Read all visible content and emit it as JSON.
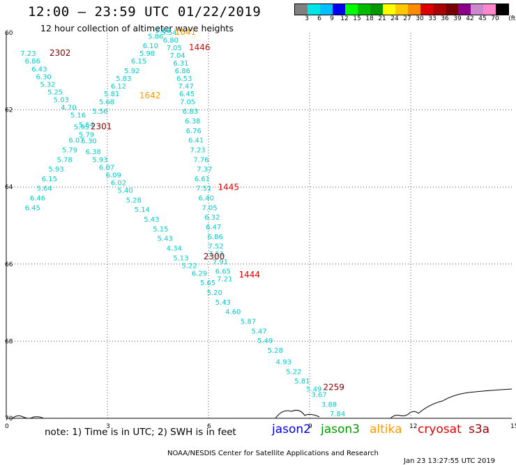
{
  "header": {
    "title": "12:00 – 23:59 UTC 01/22/2019",
    "subtitle": "12 hour collection of altimeter wave heights"
  },
  "colorbar": {
    "colors": [
      "#808080",
      "#00e5e5",
      "#00bfff",
      "#0000ee",
      "#00ff00",
      "#00bb00",
      "#009900",
      "#ffff00",
      "#ffc800",
      "#ff8c00",
      "#dd0000",
      "#aa0000",
      "#770000",
      "#8b008b",
      "#cc88cc",
      "#ff88cc",
      "#000000"
    ],
    "labels": [
      "3",
      "6",
      "9",
      "12",
      "15",
      "18",
      "21",
      "24",
      "27",
      "30",
      "33",
      "36",
      "39",
      "42",
      "45",
      "70",
      "(ft)"
    ]
  },
  "chart_data": {
    "type": "scatter",
    "x_ticks": [
      "0",
      "3",
      "6",
      "9",
      "12",
      "15"
    ],
    "y_ticks": [
      "60",
      "62",
      "64",
      "66",
      "68",
      "70"
    ],
    "xlim": [
      0,
      15
    ],
    "ylim": [
      60,
      70
    ],
    "grid": true,
    "time_labels": [
      {
        "text": "2302",
        "color": "#800000",
        "x": 1.28,
        "y": 60.6
      },
      {
        "text": "1641",
        "color": "#ff9900",
        "x": 5.0,
        "y": 60.05
      },
      {
        "text": "1446",
        "color": "#e60000",
        "x": 5.42,
        "y": 60.45
      },
      {
        "text": "1642",
        "color": "#ff9900",
        "x": 3.95,
        "y": 61.7
      },
      {
        "text": "2301",
        "color": "#800000",
        "x": 2.5,
        "y": 62.5
      },
      {
        "text": "1445",
        "color": "#e60000",
        "x": 6.28,
        "y": 64.08
      },
      {
        "text": "2300",
        "color": "#800000",
        "x": 5.85,
        "y": 65.88
      },
      {
        "text": "1444",
        "color": "#e60000",
        "x": 6.9,
        "y": 66.35
      },
      {
        "text": "2259",
        "color": "#800000",
        "x": 9.4,
        "y": 69.27
      }
    ],
    "series": [
      {
        "name": "2302",
        "color": "#00cccc",
        "points": [
          {
            "x": 0.42,
            "y": 60.6,
            "v": "7.23"
          },
          {
            "x": 0.55,
            "y": 60.8,
            "v": "6.86"
          },
          {
            "x": 0.75,
            "y": 61.0,
            "v": "6.43"
          },
          {
            "x": 0.88,
            "y": 61.2,
            "v": "6.30"
          },
          {
            "x": 1.0,
            "y": 61.4,
            "v": "5.32"
          },
          {
            "x": 1.22,
            "y": 61.6,
            "v": "5.25"
          },
          {
            "x": 1.4,
            "y": 61.8,
            "v": "5.03"
          },
          {
            "x": 1.62,
            "y": 62.0,
            "v": "4.70"
          },
          {
            "x": 1.9,
            "y": 62.2,
            "v": "5.16"
          },
          {
            "x": 2.0,
            "y": 62.5,
            "v": "5.95"
          },
          {
            "x": 2.15,
            "y": 62.7,
            "v": "5.79"
          },
          {
            "x": 2.22,
            "y": 62.87,
            "v": "6.30"
          },
          {
            "x": 2.35,
            "y": 63.15,
            "v": "6.38"
          },
          {
            "x": 2.55,
            "y": 63.35,
            "v": "5.93"
          },
          {
            "x": 2.75,
            "y": 63.55,
            "v": "6.07"
          },
          {
            "x": 2.95,
            "y": 63.75,
            "v": "6.09"
          },
          {
            "x": 3.1,
            "y": 63.95,
            "v": "6.02"
          },
          {
            "x": 3.3,
            "y": 64.15,
            "v": "5.40"
          },
          {
            "x": 3.55,
            "y": 64.4,
            "v": "5.28"
          },
          {
            "x": 3.8,
            "y": 64.65,
            "v": "5.14"
          },
          {
            "x": 4.08,
            "y": 64.9,
            "v": "5.43"
          },
          {
            "x": 4.35,
            "y": 65.15,
            "v": "5.15"
          },
          {
            "x": 4.48,
            "y": 65.4,
            "v": "5.43"
          },
          {
            "x": 4.75,
            "y": 65.65,
            "v": "4.34"
          },
          {
            "x": 4.95,
            "y": 65.9,
            "v": "5.13"
          },
          {
            "x": 5.2,
            "y": 66.1,
            "v": "5.22"
          },
          {
            "x": 5.5,
            "y": 66.3,
            "v": "6.29"
          },
          {
            "x": 5.75,
            "y": 66.55,
            "v": "5.65"
          },
          {
            "x": 5.95,
            "y": 66.8,
            "v": "5.20"
          },
          {
            "x": 6.2,
            "y": 67.05,
            "v": "5.43"
          },
          {
            "x": 6.5,
            "y": 67.3,
            "v": "4.60"
          },
          {
            "x": 6.95,
            "y": 67.55,
            "v": "5.87"
          },
          {
            "x": 7.27,
            "y": 67.8,
            "v": "5.47"
          },
          {
            "x": 7.45,
            "y": 68.05,
            "v": "5.49"
          },
          {
            "x": 7.75,
            "y": 68.3,
            "v": "5.28"
          },
          {
            "x": 8.0,
            "y": 68.6,
            "v": "4.93"
          },
          {
            "x": 8.3,
            "y": 68.85,
            "v": "5.22"
          },
          {
            "x": 8.55,
            "y": 69.1,
            "v": "5.81"
          },
          {
            "x": 8.9,
            "y": 69.3,
            "v": "5.49"
          },
          {
            "x": 9.05,
            "y": 69.45,
            "v": "3.67"
          },
          {
            "x": 9.35,
            "y": 69.7,
            "v": "3.88"
          },
          {
            "x": 9.6,
            "y": 69.95,
            "v": "7.84"
          }
        ]
      },
      {
        "name": "2301",
        "color": "#00cccc",
        "points": [
          {
            "x": 2.15,
            "y": 62.45,
            "v": "5.54"
          },
          {
            "x": 1.85,
            "y": 62.85,
            "v": "6.07"
          },
          {
            "x": 1.65,
            "y": 63.1,
            "v": "5.79"
          },
          {
            "x": 1.5,
            "y": 63.35,
            "v": "5.78"
          },
          {
            "x": 1.25,
            "y": 63.6,
            "v": "5.93"
          },
          {
            "x": 1.05,
            "y": 63.85,
            "v": "6.15"
          },
          {
            "x": 0.9,
            "y": 64.1,
            "v": "5.64"
          },
          {
            "x": 0.7,
            "y": 64.35,
            "v": "6.46"
          },
          {
            "x": 0.55,
            "y": 64.6,
            "v": "6.45"
          }
        ]
      },
      {
        "name": "1641 / 1642",
        "color": "#00cccc",
        "points": [
          {
            "x": 4.42,
            "y": 60.0,
            "v": "5.80"
          },
          {
            "x": 4.6,
            "y": 60.05,
            "v": "5.54"
          },
          {
            "x": 4.2,
            "y": 60.15,
            "v": "5.86"
          },
          {
            "x": 4.05,
            "y": 60.4,
            "v": "6.10"
          },
          {
            "x": 3.95,
            "y": 60.6,
            "v": "5.98"
          },
          {
            "x": 3.7,
            "y": 60.8,
            "v": "6.15"
          },
          {
            "x": 3.5,
            "y": 61.05,
            "v": "5.92"
          },
          {
            "x": 3.25,
            "y": 61.25,
            "v": "5.83"
          },
          {
            "x": 3.1,
            "y": 61.45,
            "v": "6.12"
          },
          {
            "x": 2.9,
            "y": 61.65,
            "v": "5.81"
          },
          {
            "x": 2.75,
            "y": 61.85,
            "v": "5.68"
          },
          {
            "x": 2.55,
            "y": 62.1,
            "v": "5.56"
          }
        ]
      },
      {
        "name": "1446 / 1444",
        "color": "#00cccc",
        "points": [
          {
            "x": 4.65,
            "y": 60.25,
            "v": "6.80"
          },
          {
            "x": 4.75,
            "y": 60.45,
            "v": "7.05"
          },
          {
            "x": 4.85,
            "y": 60.65,
            "v": "7.04"
          },
          {
            "x": 4.95,
            "y": 60.85,
            "v": "6.31"
          },
          {
            "x": 5.0,
            "y": 61.05,
            "v": "6.86"
          },
          {
            "x": 5.05,
            "y": 61.25,
            "v": "6.53"
          },
          {
            "x": 5.1,
            "y": 61.45,
            "v": "7.47"
          },
          {
            "x": 5.13,
            "y": 61.65,
            "v": "6.45"
          },
          {
            "x": 5.15,
            "y": 61.85,
            "v": "7.05"
          },
          {
            "x": 5.23,
            "y": 62.1,
            "v": "6.83"
          },
          {
            "x": 5.3,
            "y": 62.35,
            "v": "6.38"
          },
          {
            "x": 5.33,
            "y": 62.6,
            "v": "6.76"
          },
          {
            "x": 5.4,
            "y": 62.85,
            "v": "6.41"
          },
          {
            "x": 5.45,
            "y": 63.1,
            "v": "7.23"
          },
          {
            "x": 5.55,
            "y": 63.35,
            "v": "7.76"
          },
          {
            "x": 5.65,
            "y": 63.6,
            "v": "7.37"
          },
          {
            "x": 5.58,
            "y": 63.85,
            "v": "6.61"
          },
          {
            "x": 5.63,
            "y": 64.1,
            "v": "7.51"
          },
          {
            "x": 5.7,
            "y": 64.35,
            "v": "6.40"
          },
          {
            "x": 5.8,
            "y": 64.6,
            "v": "7.05"
          },
          {
            "x": 5.88,
            "y": 64.85,
            "v": "6.32"
          },
          {
            "x": 5.92,
            "y": 65.1,
            "v": "6.47"
          },
          {
            "x": 5.97,
            "y": 65.35,
            "v": "6.86"
          },
          {
            "x": 5.99,
            "y": 65.6,
            "v": "7.52"
          },
          {
            "x": 6.0,
            "y": 65.8,
            "v": "7.51"
          },
          {
            "x": 6.12,
            "y": 66.0,
            "v": "7.91"
          },
          {
            "x": 6.2,
            "y": 66.25,
            "v": "6.65"
          },
          {
            "x": 6.25,
            "y": 66.45,
            "v": "7.21"
          }
        ]
      }
    ]
  },
  "footer": {
    "note": "note:  1) Time is in UTC;  2) SWH is in feet",
    "satellites": [
      {
        "label": "jason2",
        "color": "#0000dd"
      },
      {
        "label": "jason3",
        "color": "#009900"
      },
      {
        "label": "altika",
        "color": "#ff9900"
      },
      {
        "label": "cryosat",
        "color": "#dd0000"
      },
      {
        "label": "s3a",
        "color": "#990000"
      }
    ],
    "credit": "NOAA/NESDIS Center for Satellite Applications and Research",
    "timestamp": "Jan 23 13:27:55 UTC 2019"
  }
}
